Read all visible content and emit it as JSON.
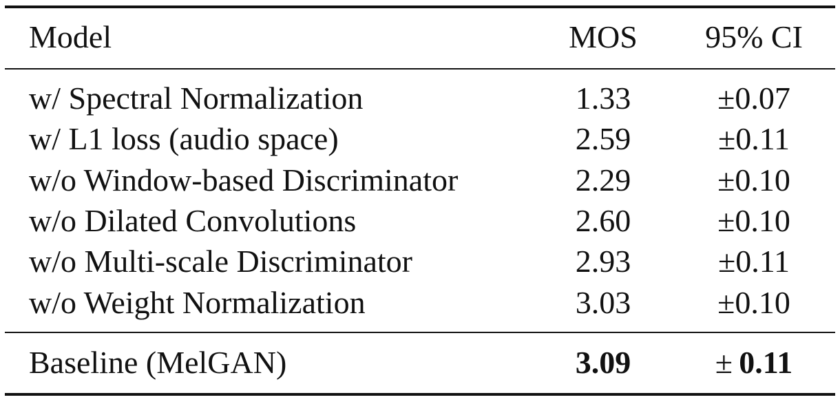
{
  "table": {
    "header": [
      "Model",
      "MOS",
      "95% CI"
    ],
    "rows": [
      [
        "w/ Spectral Normalization",
        "1.33",
        "±0.07"
      ],
      [
        "w/ L1 loss (audio space)",
        "2.59",
        "±0.11"
      ],
      [
        "w/o Window-based Discriminator",
        "2.29",
        "±0.10"
      ],
      [
        "w/o Dilated Convolutions",
        "2.60",
        "±0.10"
      ],
      [
        "w/o Multi-scale Discriminator",
        "2.93",
        "±0.11"
      ],
      [
        "w/o Weight Normalization",
        "3.03",
        "±0.10"
      ]
    ],
    "baseline": {
      "model": "Baseline (MelGAN)",
      "mos": "3.09",
      "ci_sign": "±",
      "ci_value": "0.11"
    }
  }
}
